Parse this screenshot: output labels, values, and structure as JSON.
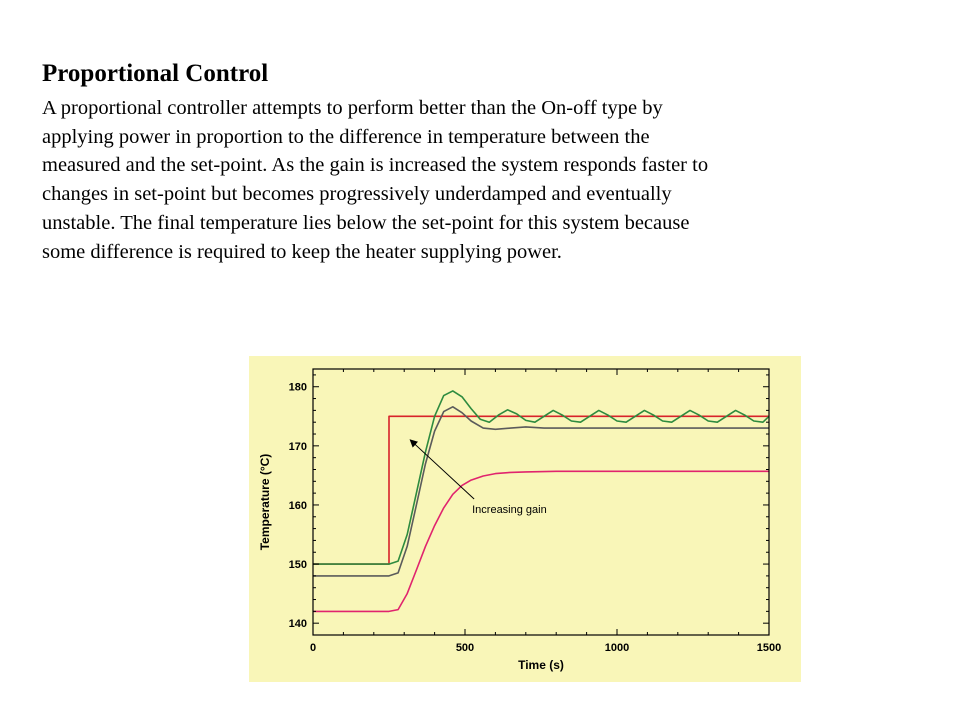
{
  "slide": {
    "title": "Proportional Control",
    "body_lines": [
      "A proportional controller attempts to perform better than the On-off type by",
      "applying power in proportion to the difference in temperature between the",
      "measured and the set-point.  As the gain is increased the system responds faster to",
      "changes in set-point but becomes progressively underdamped and eventually",
      "unstable. The final temperature lies below the set-point for this system because",
      "some difference is required to keep the heater supplying power."
    ]
  },
  "colors": {
    "panel_background": "#f9f6b8",
    "setpoint": "#d8232a",
    "high_gain": "#2e8b3f",
    "mid_gain": "#5b5b5b",
    "low_gain": "#e0246e",
    "annotation": "#000000"
  },
  "chart_data": {
    "type": "line",
    "xlabel": "Time (s)",
    "ylabel": "Temperature (°C)",
    "xlim": [
      0,
      1500
    ],
    "ylim": [
      138,
      183
    ],
    "x_ticks": [
      0,
      500,
      1000,
      1500
    ],
    "y_ticks": [
      140,
      150,
      160,
      170,
      180
    ],
    "grid": false,
    "legend": "none",
    "annotation": {
      "text": "Increasing gain",
      "arrow_from": [
        530,
        161
      ],
      "arrow_to": [
        320,
        171
      ]
    },
    "series": [
      {
        "key": "setpoint",
        "color_key": "setpoint",
        "x": [
          0,
          250,
          250,
          1500
        ],
        "y": [
          150,
          150,
          175,
          175
        ]
      },
      {
        "key": "high_gain",
        "color_key": "high_gain",
        "x": [
          0,
          250,
          280,
          310,
          340,
          370,
          400,
          430,
          460,
          490,
          520,
          550,
          580,
          610,
          640,
          670,
          700,
          730,
          760,
          790,
          820,
          850,
          880,
          910,
          940,
          970,
          1000,
          1030,
          1060,
          1090,
          1120,
          1150,
          1180,
          1210,
          1240,
          1270,
          1300,
          1330,
          1360,
          1390,
          1420,
          1450,
          1480,
          1500
        ],
        "y": [
          150,
          150,
          150.5,
          155,
          162,
          169,
          175,
          178.5,
          179.3,
          178.3,
          176.3,
          174.5,
          174,
          175.2,
          176.1,
          175.4,
          174.3,
          174,
          175,
          176,
          175.2,
          174.2,
          174,
          175,
          176,
          175.2,
          174.2,
          174,
          175,
          176,
          175.2,
          174.2,
          174,
          175,
          176,
          175.2,
          174.2,
          174,
          175,
          176,
          175.2,
          174.2,
          174,
          175
        ]
      },
      {
        "key": "mid_gain",
        "color_key": "mid_gain",
        "x": [
          0,
          250,
          280,
          310,
          340,
          370,
          400,
          430,
          460,
          490,
          520,
          560,
          600,
          650,
          700,
          760,
          850,
          1000,
          1500
        ],
        "y": [
          148,
          148,
          148.5,
          153,
          160,
          167,
          172.5,
          175.8,
          176.6,
          175.6,
          174.2,
          173,
          172.8,
          173,
          173.2,
          173,
          173,
          173,
          173
        ]
      },
      {
        "key": "low_gain",
        "color_key": "low_gain",
        "x": [
          0,
          250,
          280,
          310,
          340,
          370,
          400,
          430,
          460,
          490,
          520,
          560,
          600,
          650,
          700,
          800,
          900,
          1000,
          1200,
          1500
        ],
        "y": [
          142,
          142,
          142.3,
          145,
          149,
          153,
          156.5,
          159.5,
          161.8,
          163.3,
          164.2,
          164.9,
          165.3,
          165.5,
          165.6,
          165.7,
          165.7,
          165.7,
          165.7,
          165.7
        ]
      }
    ]
  }
}
